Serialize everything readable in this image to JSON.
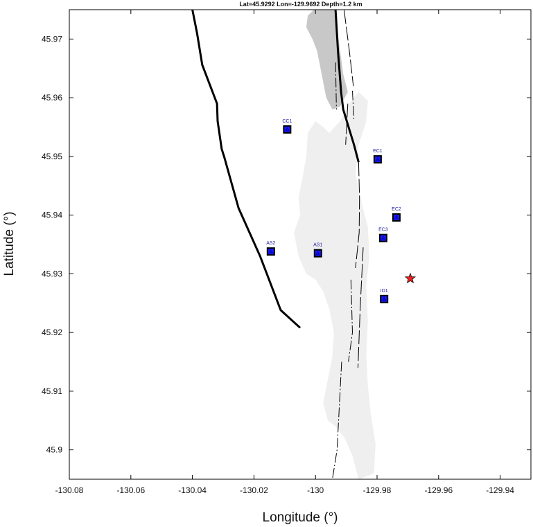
{
  "title": "Lat=45.9292  Lon=-129.9692  Depth=1.2 km",
  "xlabel": "Longitude (°)",
  "ylabel": "Latitude (°)",
  "chart_data": {
    "type": "scatter",
    "title": "Lat=45.9292  Lon=-129.9692  Depth=1.2 km",
    "xlabel": "Longitude (°)",
    "ylabel": "Latitude (°)",
    "xlim": [
      -130.08,
      -129.93
    ],
    "ylim": [
      45.895,
      45.975
    ],
    "xticks": [
      "-130.08",
      "-130.06",
      "-130.04",
      "-130.02",
      "-130",
      "-129.98",
      "-129.96",
      "-129.94"
    ],
    "yticks": [
      "45.9",
      "45.91",
      "45.92",
      "45.93",
      "45.94",
      "45.95",
      "45.96",
      "45.97"
    ],
    "grid": false,
    "stations": [
      {
        "name": "CC1",
        "lon": -130.0092,
        "lat": 45.9546
      },
      {
        "name": "EC1",
        "lon": -129.9798,
        "lat": 45.9495
      },
      {
        "name": "EC2",
        "lon": -129.9737,
        "lat": 45.9396
      },
      {
        "name": "EC3",
        "lon": -129.978,
        "lat": 45.9361
      },
      {
        "name": "AS2",
        "lon": -130.0145,
        "lat": 45.9338
      },
      {
        "name": "AS1",
        "lon": -129.9992,
        "lat": 45.9335
      },
      {
        "name": "ID1",
        "lon": -129.9777,
        "lat": 45.9257
      }
    ],
    "event": {
      "lon": -129.9692,
      "lat": 45.9292,
      "depth_km": 1.2
    },
    "colors": {
      "station_fill": "#1a1aff",
      "station_edge": "#000000",
      "event_fill": "#e82020",
      "lava_dark": "#c8c8c8",
      "lava_light": "#efefef",
      "caldera_line": "#000000"
    },
    "caldera_rim": [
      [
        -130.04,
        45.975
      ],
      [
        -130.0385,
        45.971
      ],
      [
        -130.0368,
        45.9656
      ],
      [
        -130.032,
        45.959
      ],
      [
        -130.0318,
        45.956
      ],
      [
        -130.0305,
        45.9513
      ],
      [
        -130.0297,
        45.95
      ],
      [
        -130.025,
        45.9412
      ],
      [
        -130.018,
        45.933
      ],
      [
        -130.0113,
        45.9238
      ],
      [
        -130.005,
        45.9208
      ]
    ],
    "east_rim": [
      [
        -129.9935,
        45.975
      ],
      [
        -129.9927,
        45.968
      ],
      [
        -129.9917,
        45.961
      ],
      [
        -129.991,
        45.958
      ],
      [
        -129.9875,
        45.952
      ],
      [
        -129.986,
        45.949
      ]
    ],
    "fissures": [
      [
        [
          -129.9907,
          45.9749
        ],
        [
          -129.989,
          45.968
        ],
        [
          -129.9877,
          45.962
        ]
      ],
      [
        [
          -129.988,
          45.9612
        ],
        [
          -129.9875,
          45.956
        ]
      ],
      [
        [
          -129.9895,
          45.959
        ],
        [
          -129.9902,
          45.952
        ]
      ],
      [
        [
          -129.9935,
          45.966
        ],
        [
          -129.9932,
          45.958
        ]
      ],
      [
        [
          -129.986,
          45.949
        ],
        [
          -129.9857,
          45.943
        ],
        [
          -129.9858,
          45.937
        ],
        [
          -129.987,
          45.931
        ]
      ],
      [
        [
          -129.9885,
          45.929
        ],
        [
          -129.988,
          45.92
        ],
        [
          -129.9893,
          45.915
        ]
      ],
      [
        [
          -129.9845,
          45.9345
        ],
        [
          -129.9855,
          45.924
        ],
        [
          -129.9862,
          45.914
        ]
      ],
      [
        [
          -129.9915,
          45.915
        ],
        [
          -129.993,
          45.9
        ],
        [
          -129.9945,
          45.895
        ]
      ]
    ],
    "lava_dark_poly": [
      [
        -130.0005,
        45.975
      ],
      [
        -129.9935,
        45.975
      ],
      [
        -129.9925,
        45.97
      ],
      [
        -129.991,
        45.964
      ],
      [
        -129.9895,
        45.961
      ],
      [
        -129.992,
        45.9585
      ],
      [
        -129.9945,
        45.958
      ],
      [
        -129.9965,
        45.96
      ],
      [
        -129.998,
        45.964
      ],
      [
        -129.9995,
        45.968
      ],
      [
        -130.001,
        45.97
      ],
      [
        -130.003,
        45.972
      ],
      [
        -130.0025,
        45.974
      ]
    ],
    "lava_light_poly": [
      [
        -129.9955,
        45.954
      ],
      [
        -129.992,
        45.956
      ],
      [
        -129.989,
        45.959
      ],
      [
        -129.986,
        45.961
      ],
      [
        -129.983,
        45.9595
      ],
      [
        -129.9835,
        45.956
      ],
      [
        -129.986,
        45.952
      ],
      [
        -129.987,
        45.947
      ],
      [
        -129.985,
        45.942
      ],
      [
        -129.983,
        45.938
      ],
      [
        -129.9825,
        45.933
      ],
      [
        -129.9835,
        45.928
      ],
      [
        -129.983,
        45.922
      ],
      [
        -129.9835,
        45.916
      ],
      [
        -129.983,
        45.911
      ],
      [
        -129.982,
        45.906
      ],
      [
        -129.9805,
        45.901
      ],
      [
        -129.981,
        45.896
      ],
      [
        -129.986,
        45.895
      ],
      [
        -129.988,
        45.899
      ],
      [
        -129.9905,
        45.902
      ],
      [
        -129.9935,
        45.904
      ],
      [
        -129.996,
        45.905
      ],
      [
        -129.9975,
        45.908
      ],
      [
        -129.996,
        45.912
      ],
      [
        -129.9945,
        45.916
      ],
      [
        -129.994,
        45.92
      ],
      [
        -129.9955,
        45.924
      ],
      [
        -129.9975,
        45.927
      ],
      [
        -130.0,
        45.929
      ],
      [
        -130.003,
        45.93
      ],
      [
        -130.0055,
        45.933
      ],
      [
        -130.007,
        45.937
      ],
      [
        -130.005,
        45.94
      ],
      [
        -130.0055,
        45.943
      ],
      [
        -130.004,
        45.947
      ],
      [
        -130.003,
        45.95
      ],
      [
        -130.0025,
        45.954
      ],
      [
        -130.0,
        45.956
      ],
      [
        -129.9975,
        45.955
      ]
    ]
  }
}
